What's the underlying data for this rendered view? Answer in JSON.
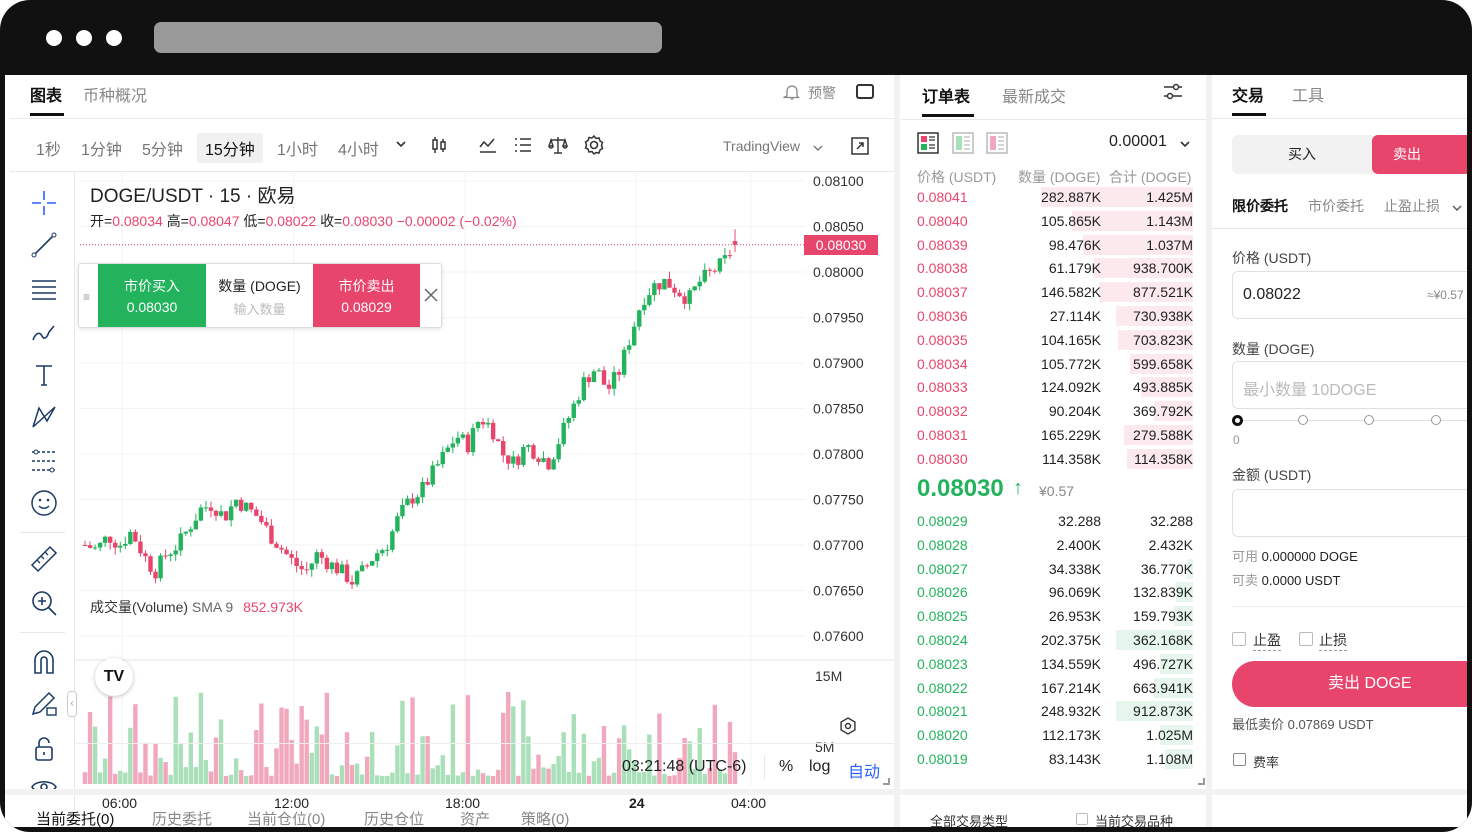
{
  "browser": {
    "dots": 3
  },
  "chart_header": {
    "tabs": [
      "图表",
      "币种概况"
    ],
    "alert_label": "预警"
  },
  "intervals": [
    "1秒",
    "1分钟",
    "5分钟",
    "15分钟",
    "1小时",
    "4小时"
  ],
  "selected_interval": "15分钟",
  "tradingview_label": "TradingView",
  "symbol_title": "DOGE/USDT · 15 · 欧易",
  "ohlc": {
    "open_label": "开=",
    "open": "0.08034",
    "high_label": "高=",
    "high": "0.08047",
    "low_label": "低=",
    "low": "0.08022",
    "close_label": "收=",
    "close": "0.08030",
    "change": "−0.00002 (−0.02%)"
  },
  "quick_trade": {
    "buy_label": "市价买入",
    "buy_price": "0.08030",
    "qty_label": "数量 (DOGE)",
    "qty_placeholder": "输入数量",
    "sell_label": "市价卖出",
    "sell_price": "0.08029"
  },
  "volume_legend": {
    "label": "成交量(Volume)",
    "sma": "SMA 9",
    "value": "852.973K"
  },
  "chart_bottom": {
    "time": "03:21:48 (UTC-6)",
    "percent": "%",
    "log": "log",
    "auto": "自动"
  },
  "colors": {
    "up": "#22b35c",
    "down": "#e8456d",
    "vol_up": "#a9dfb9",
    "vol_down": "#f1a8bd",
    "accent": "#2962ff"
  },
  "chart_data": {
    "type": "candlestick",
    "price_axis_ticks": [
      "0.08100",
      "0.08050",
      "0.08000",
      "0.07950",
      "0.07900",
      "0.07850",
      "0.07800",
      "0.07750",
      "0.07700",
      "0.07650",
      "0.07600"
    ],
    "volume_axis_ticks": [
      "15M",
      "5M"
    ],
    "time_ticks": [
      "06:00",
      "12:00",
      "18:00",
      "24",
      "04:00"
    ],
    "current_price": "0.08030",
    "ylim": [
      0.076,
      0.081
    ],
    "last_candle": {
      "open": 0.08034,
      "high": 0.08047,
      "low": 0.08022,
      "close": 0.0803
    },
    "close_path": [
      0.077,
      0.07695,
      0.0771,
      0.077,
      0.07715,
      0.0769,
      0.0767,
      0.0769,
      0.077,
      0.0772,
      0.0774,
      0.07745,
      0.0773,
      0.0775,
      0.0774,
      0.0773,
      0.0771,
      0.07695,
      0.0768,
      0.0767,
      0.0769,
      0.0768,
      0.07672,
      0.0766,
      0.07672,
      0.0769,
      0.077,
      0.0773,
      0.0775,
      0.0776,
      0.0778,
      0.078,
      0.0782,
      0.0781,
      0.0784,
      0.0783,
      0.078,
      0.0779,
      0.0781,
      0.078,
      0.0779,
      0.0782,
      0.0785,
      0.0788,
      0.07895,
      0.0787,
      0.0789,
      0.0793,
      0.0797,
      0.07985,
      0.0799,
      0.0798,
      0.0797,
      0.0799,
      0.08,
      0.0801,
      0.0803
    ]
  },
  "orderbook": {
    "tabs": [
      "订单表",
      "最新成交"
    ],
    "precision": "0.00001",
    "headers": [
      "价格 (USDT)",
      "数量 (DOGE)",
      "合计 (DOGE)"
    ],
    "asks": [
      {
        "price": "0.08041",
        "qty": "282.887K",
        "total": "1.425M",
        "depth": 0.55
      },
      {
        "price": "0.08040",
        "qty": "105.865K",
        "total": "1.143M",
        "depth": 0.44
      },
      {
        "price": "0.08039",
        "qty": "98.476K",
        "total": "1.037M",
        "depth": 0.4
      },
      {
        "price": "0.08038",
        "qty": "61.179K",
        "total": "938.700K",
        "depth": 0.36
      },
      {
        "price": "0.08037",
        "qty": "146.582K",
        "total": "877.521K",
        "depth": 0.34
      },
      {
        "price": "0.08036",
        "qty": "27.114K",
        "total": "730.938K",
        "depth": 0.28
      },
      {
        "price": "0.08035",
        "qty": "104.165K",
        "total": "703.823K",
        "depth": 0.27
      },
      {
        "price": "0.08034",
        "qty": "105.772K",
        "total": "599.658K",
        "depth": 0.23
      },
      {
        "price": "0.08033",
        "qty": "124.092K",
        "total": "493.885K",
        "depth": 0.19
      },
      {
        "price": "0.08032",
        "qty": "90.204K",
        "total": "369.792K",
        "depth": 0.14
      },
      {
        "price": "0.08031",
        "qty": "165.229K",
        "total": "279.588K",
        "depth": 0.25
      },
      {
        "price": "0.08030",
        "qty": "114.358K",
        "total": "114.358K",
        "depth": 0.24
      }
    ],
    "last_price": "0.08030",
    "last_arrow": "↑",
    "last_fiat": "¥0.57",
    "bids": [
      {
        "price": "0.08029",
        "qty": "32.288",
        "total": "32.288",
        "depth": 0
      },
      {
        "price": "0.08028",
        "qty": "2.400K",
        "total": "2.432K",
        "depth": 0
      },
      {
        "price": "0.08027",
        "qty": "34.338K",
        "total": "36.770K",
        "depth": 0.02
      },
      {
        "price": "0.08026",
        "qty": "96.069K",
        "total": "132.839K",
        "depth": 0.06
      },
      {
        "price": "0.08025",
        "qty": "26.953K",
        "total": "159.793K",
        "depth": 0.07
      },
      {
        "price": "0.08024",
        "qty": "202.375K",
        "total": "362.168K",
        "depth": 0.28
      },
      {
        "price": "0.08023",
        "qty": "134.559K",
        "total": "496.727K",
        "depth": 0.12
      },
      {
        "price": "0.08022",
        "qty": "167.214K",
        "total": "663.941K",
        "depth": 0.14
      },
      {
        "price": "0.08021",
        "qty": "248.932K",
        "total": "912.873K",
        "depth": 0.28
      },
      {
        "price": "0.08020",
        "qty": "112.173K",
        "total": "1.025M",
        "depth": 0.12
      },
      {
        "price": "0.08019",
        "qty": "83.143K",
        "total": "1.108M",
        "depth": 0.1
      }
    ]
  },
  "trade": {
    "tabs": [
      "交易",
      "工具"
    ],
    "buy": "买入",
    "sell": "卖出",
    "order_types": [
      "限价委托",
      "市价委托",
      "止盈止损"
    ],
    "price_label": "价格 (USDT)",
    "price_value": "0.08022",
    "price_fiat": "≈¥0.57",
    "qty_label": "数量 (DOGE)",
    "qty_placeholder": "最小数量 10DOGE",
    "slider_start": "0",
    "amount_label": "金额 (USDT)",
    "avail1_label": "可用",
    "avail1_value": "0.000000 DOGE",
    "avail2_label": "可卖",
    "avail2_value": "0.0000 USDT",
    "tp_label": "止盈",
    "sl_label": "止损",
    "submit": "卖出 DOGE",
    "min_sell": "最低卖价 0.07869 USDT",
    "fee": "费率"
  },
  "bottom_tabs": [
    "当前委托(0)",
    "历史委托",
    "当前仓位(0)",
    "历史仓位",
    "资产",
    "策略(0)"
  ],
  "bottom_filters": {
    "type": "全部交易类型",
    "current": "当前交易品种"
  }
}
